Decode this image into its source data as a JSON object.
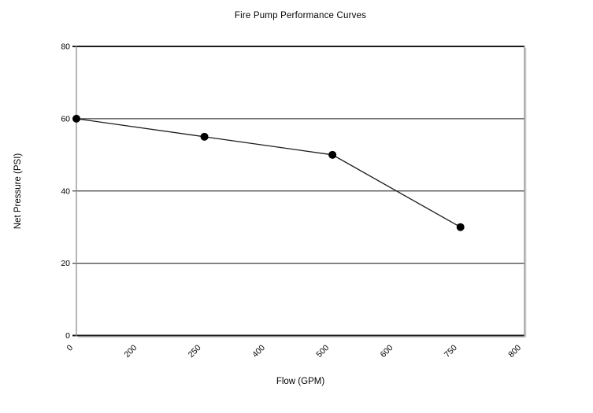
{
  "page": {
    "background": "#ffffff"
  },
  "chart_data": {
    "type": "line",
    "title": "Fire Pump Performance Curves",
    "xlabel": "Flow (GPM)",
    "ylabel": "Net Pressure (PSI)",
    "x_axis_type": "category",
    "x_categories": [
      "0",
      "200",
      "250",
      "400",
      "500",
      "600",
      "750",
      "800"
    ],
    "y_ticks": [
      0,
      20,
      40,
      60,
      80
    ],
    "ylim": [
      0,
      80
    ],
    "grid": "horizontal",
    "legend": "none",
    "series": [
      {
        "name": "Net Pressure (PSI)",
        "marker": "filled-circle",
        "points": [
          {
            "flow_gpm": 0,
            "net_pressure_psi": 60,
            "category_index": 0
          },
          {
            "flow_gpm": 250,
            "net_pressure_psi": 55,
            "category_index": 2
          },
          {
            "flow_gpm": 500,
            "net_pressure_psi": 50,
            "category_index": 4
          },
          {
            "flow_gpm": 750,
            "net_pressure_psi": 30,
            "category_index": 6
          }
        ]
      }
    ],
    "colors": {
      "line": "#1a1a1a",
      "marker": "#000000",
      "gridline": "#404040",
      "plot_border_dark": "#1c1c1c",
      "plot_border_side": "#8a8a8a",
      "shadow": "#c9c9c9",
      "text": "#000000",
      "background": "#ffffff"
    }
  }
}
